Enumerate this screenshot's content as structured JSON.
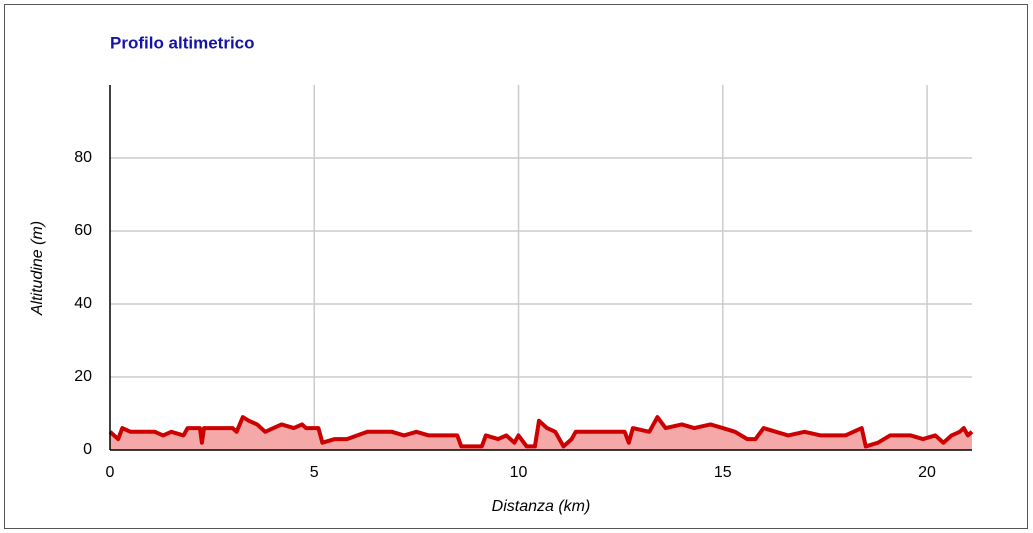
{
  "chart_data": {
    "type": "area",
    "title": "Profilo altimetrico",
    "xlabel": "Distanza (km)",
    "ylabel": "Altitudine (m)",
    "x": [
      0,
      0.2,
      0.3,
      0.5,
      1.1,
      1.3,
      1.5,
      1.8,
      1.9,
      2.2,
      2.25,
      2.3,
      3.0,
      3.1,
      3.25,
      3.4,
      3.6,
      3.8,
      4.0,
      4.2,
      4.5,
      4.7,
      4.8,
      5.1,
      5.2,
      5.5,
      5.8,
      6.3,
      6.9,
      7.2,
      7.5,
      7.8,
      8.5,
      8.6,
      9.1,
      9.2,
      9.5,
      9.7,
      9.9,
      10.0,
      10.2,
      10.4,
      10.5,
      10.7,
      10.9,
      11.1,
      11.3,
      11.4,
      12.1,
      12.6,
      12.7,
      12.8,
      13.2,
      13.4,
      13.6,
      14.0,
      14.3,
      14.7,
      15.0,
      15.3,
      15.6,
      15.8,
      16.0,
      16.3,
      16.6,
      17.0,
      17.4,
      18.0,
      18.4,
      18.5,
      18.8,
      19.1,
      19.6,
      19.9,
      20.2,
      20.4,
      20.6,
      20.8,
      20.9,
      21.0,
      21.1
    ],
    "series": [
      {
        "name": "Altitudine",
        "color": "#cc0000",
        "fill": "#f4a8a8",
        "values": [
          5,
          3,
          6,
          5,
          5,
          4,
          5,
          4,
          6,
          6,
          2,
          6,
          6,
          5,
          9,
          8,
          7,
          5,
          6,
          7,
          6,
          7,
          6,
          6,
          2,
          3,
          3,
          5,
          5,
          4,
          5,
          4,
          4,
          1,
          1,
          4,
          3,
          4,
          2,
          4,
          1,
          1,
          8,
          6,
          5,
          1,
          3,
          5,
          5,
          5,
          2,
          6,
          5,
          9,
          6,
          7,
          6,
          7,
          6,
          5,
          3,
          3,
          6,
          5,
          4,
          5,
          4,
          4,
          6,
          1,
          2,
          4,
          4,
          3,
          4,
          2,
          4,
          5,
          6,
          4,
          5
        ]
      }
    ],
    "xlim": [
      0,
      21.1
    ],
    "xticks": [
      0,
      5,
      10,
      15,
      20
    ],
    "ylim": [
      0,
      100
    ],
    "yticks": [
      0,
      20,
      40,
      60,
      80
    ],
    "grid": true
  }
}
